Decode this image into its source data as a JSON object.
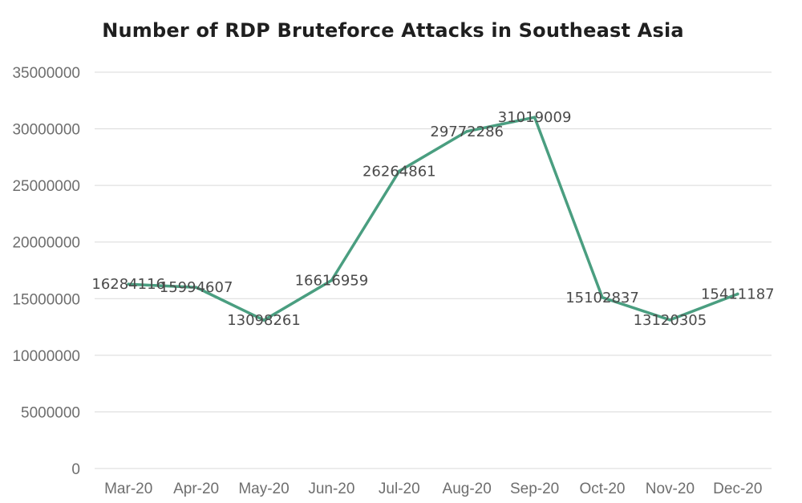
{
  "chart_data": {
    "type": "line",
    "title": "Number of RDP Bruteforce Attacks in Southeast Asia",
    "categories": [
      "Mar-20",
      "Apr-20",
      "May-20",
      "Jun-20",
      "Jul-20",
      "Aug-20",
      "Sep-20",
      "Oct-20",
      "Nov-20",
      "Dec-20"
    ],
    "series": [
      {
        "name": "RDP Bruteforce Attacks",
        "values": [
          16284116,
          15994607,
          13098261,
          16616959,
          26264861,
          29772286,
          31019009,
          15102837,
          13120305,
          15411187
        ],
        "labels": [
          "16284116",
          "15994607",
          "13098261",
          "16616959",
          "26264861",
          "29772286",
          "31019009",
          "15102837",
          "13120305",
          "15411187"
        ],
        "color": "#4a9e80"
      }
    ],
    "yticks": [
      0,
      5000000,
      10000000,
      15000000,
      20000000,
      25000000,
      30000000,
      35000000
    ],
    "ytick_labels": [
      "0",
      "5000000",
      "10000000",
      "15000000",
      "20000000",
      "25000000",
      "30000000",
      "35000000"
    ],
    "ylim": [
      0,
      35000000
    ],
    "xlabel": "",
    "ylabel": "",
    "grid": true,
    "legend": "none"
  }
}
